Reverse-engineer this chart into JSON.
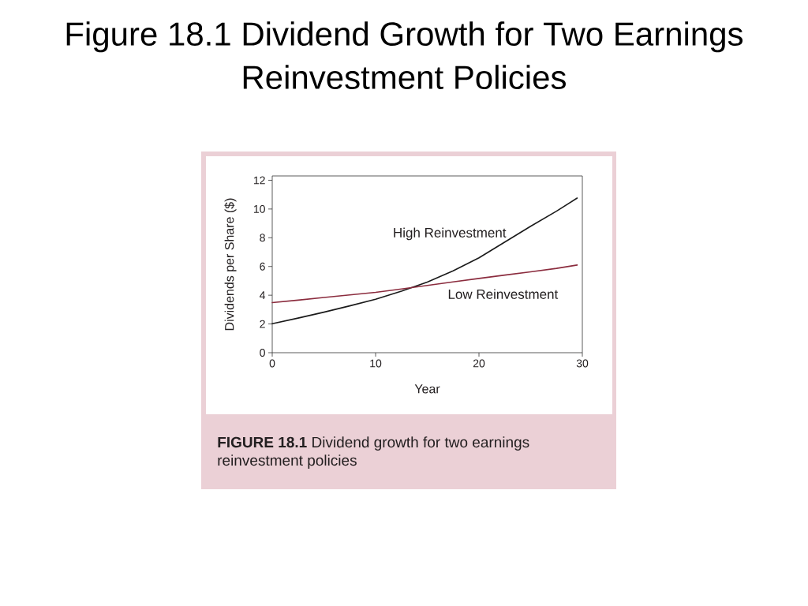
{
  "chart_data": {
    "type": "line",
    "title": "Figure 18.1 Dividend Growth for Two Earnings Reinvestment Policies",
    "xlabel": "Year",
    "ylabel": "Dividends per Share ($)",
    "x": [
      0,
      2.5,
      5,
      7.5,
      10,
      12.5,
      15,
      17.5,
      20,
      22.5,
      25,
      27.5,
      29.5
    ],
    "series": [
      {
        "name": "High Reinvestment",
        "color": "#1a1a1a",
        "values": [
          2.02,
          2.41,
          2.82,
          3.26,
          3.72,
          4.28,
          4.92,
          5.7,
          6.6,
          7.7,
          8.8,
          9.85,
          10.76
        ]
      },
      {
        "name": "Low Reinvestment",
        "color": "#8b2c3e",
        "values": [
          3.49,
          3.66,
          3.84,
          4.02,
          4.2,
          4.43,
          4.68,
          4.93,
          5.17,
          5.4,
          5.63,
          5.87,
          6.1
        ]
      }
    ],
    "xlim": [
      0,
      30
    ],
    "ylim": [
      0,
      12.3
    ],
    "xticks": [
      0,
      10,
      20,
      30
    ],
    "yticks": [
      0,
      2,
      4,
      6,
      8,
      10,
      12
    ],
    "legend": false,
    "marker": "none",
    "line_style": "solid",
    "annotations": [
      "**FIGURE 18.1** Dividend growth for two earnings reinvestment policies"
    ]
  }
}
